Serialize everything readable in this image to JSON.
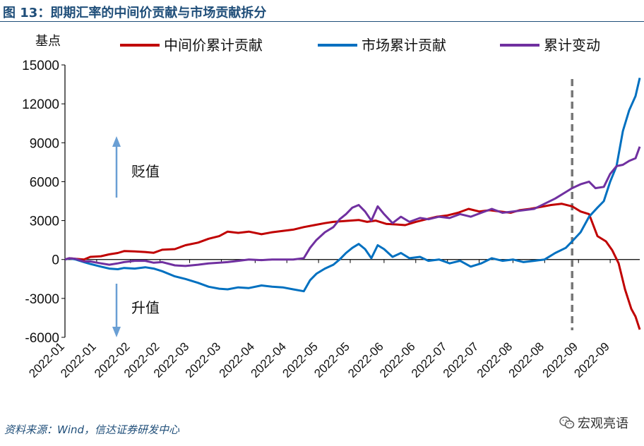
{
  "header": {
    "title": "图 13：即期汇率的中间价贡献与市场贡献拆分"
  },
  "footer": {
    "source": "资料来源：Wind，信达证券研发中心",
    "watermark": "宏观亮语"
  },
  "icons": {
    "watermark_icon": "wechat-logo-icon",
    "up_arrow": "arrow-up-icon",
    "down_arrow": "arrow-down-icon"
  },
  "chart_data": {
    "type": "line",
    "y_unit_label": "基点",
    "ylim": [
      -6000,
      15000
    ],
    "yticks": [
      -6000,
      -3000,
      0,
      3000,
      6000,
      9000,
      12000,
      15000
    ],
    "ytick_labels": [
      "-6000",
      "-3000",
      "0",
      "3000",
      "6000",
      "9000",
      "12000",
      "15000"
    ],
    "x_tick_labels": [
      "2022-01",
      "2022-01",
      "2022-02",
      "2022-02",
      "2022-03",
      "2022-03",
      "2022-04",
      "2022-04",
      "2022-05",
      "2022-05",
      "2022-06",
      "2022-06",
      "2022-07",
      "2022-07",
      "2022-08",
      "2022-08",
      "2022-09",
      "2022-09"
    ],
    "x_tick_dates": [
      "2022-01-01",
      "2022-01-16",
      "2022-02-01",
      "2022-02-15",
      "2022-03-01",
      "2022-03-16",
      "2022-04-01",
      "2022-04-16",
      "2022-05-01",
      "2022-05-16",
      "2022-06-01",
      "2022-06-16",
      "2022-07-01",
      "2022-07-16",
      "2022-08-01",
      "2022-08-16",
      "2022-09-01",
      "2022-09-16"
    ],
    "x_range": [
      "2022-01-01",
      "2022-09-30"
    ],
    "grid": false,
    "legend_position": "top",
    "annotations": {
      "up_label": "贬值",
      "down_label": "升值",
      "vline_date": "2022-08-29"
    },
    "series": [
      {
        "name": "中间价累计贡献",
        "color": "#c00000",
        "points": [
          [
            "2022-01-01",
            0
          ],
          [
            "2022-01-03",
            100
          ],
          [
            "2022-01-06",
            50
          ],
          [
            "2022-01-10",
            0
          ],
          [
            "2022-01-13",
            200
          ],
          [
            "2022-01-18",
            250
          ],
          [
            "2022-01-22",
            400
          ],
          [
            "2022-01-26",
            500
          ],
          [
            "2022-01-29",
            650
          ],
          [
            "2022-02-03",
            620
          ],
          [
            "2022-02-08",
            580
          ],
          [
            "2022-02-12",
            520
          ],
          [
            "2022-02-16",
            750
          ],
          [
            "2022-02-22",
            800
          ],
          [
            "2022-02-27",
            1100
          ],
          [
            "2022-03-05",
            1300
          ],
          [
            "2022-03-10",
            1600
          ],
          [
            "2022-03-15",
            1800
          ],
          [
            "2022-03-19",
            2150
          ],
          [
            "2022-03-24",
            2050
          ],
          [
            "2022-03-29",
            2150
          ],
          [
            "2022-04-04",
            1950
          ],
          [
            "2022-04-09",
            2100
          ],
          [
            "2022-04-14",
            2200
          ],
          [
            "2022-04-19",
            2300
          ],
          [
            "2022-04-24",
            2500
          ],
          [
            "2022-04-29",
            2650
          ],
          [
            "2022-05-04",
            2800
          ],
          [
            "2022-05-08",
            2900
          ],
          [
            "2022-05-12",
            2950
          ],
          [
            "2022-05-16",
            3000
          ],
          [
            "2022-05-20",
            3050
          ],
          [
            "2022-05-24",
            2900
          ],
          [
            "2022-05-28",
            3000
          ],
          [
            "2022-06-02",
            2750
          ],
          [
            "2022-06-07",
            2700
          ],
          [
            "2022-06-11",
            2650
          ],
          [
            "2022-06-16",
            2900
          ],
          [
            "2022-06-21",
            3100
          ],
          [
            "2022-06-26",
            3300
          ],
          [
            "2022-07-01",
            3400
          ],
          [
            "2022-07-06",
            3600
          ],
          [
            "2022-07-11",
            3900
          ],
          [
            "2022-07-16",
            3700
          ],
          [
            "2022-07-21",
            3800
          ],
          [
            "2022-07-26",
            3700
          ],
          [
            "2022-07-31",
            3600
          ],
          [
            "2022-08-04",
            3800
          ],
          [
            "2022-08-09",
            3900
          ],
          [
            "2022-08-14",
            4050
          ],
          [
            "2022-08-19",
            4200
          ],
          [
            "2022-08-24",
            4300
          ],
          [
            "2022-08-29",
            4100
          ],
          [
            "2022-09-02",
            3700
          ],
          [
            "2022-09-06",
            3500
          ],
          [
            "2022-09-10",
            1800
          ],
          [
            "2022-09-14",
            1400
          ],
          [
            "2022-09-17",
            700
          ],
          [
            "2022-09-20",
            -300
          ],
          [
            "2022-09-23",
            -2300
          ],
          [
            "2022-09-26",
            -3800
          ],
          [
            "2022-09-28",
            -4400
          ],
          [
            "2022-09-30",
            -5400
          ]
        ]
      },
      {
        "name": "市场累计贡献",
        "color": "#0070c0",
        "points": [
          [
            "2022-01-01",
            0
          ],
          [
            "2022-01-03",
            80
          ],
          [
            "2022-01-06",
            0
          ],
          [
            "2022-01-10",
            -200
          ],
          [
            "2022-01-13",
            -350
          ],
          [
            "2022-01-18",
            -550
          ],
          [
            "2022-01-22",
            -700
          ],
          [
            "2022-01-26",
            -750
          ],
          [
            "2022-01-29",
            -650
          ],
          [
            "2022-02-03",
            -700
          ],
          [
            "2022-02-08",
            -600
          ],
          [
            "2022-02-12",
            -700
          ],
          [
            "2022-02-16",
            -900
          ],
          [
            "2022-02-22",
            -1300
          ],
          [
            "2022-02-27",
            -1500
          ],
          [
            "2022-03-05",
            -1800
          ],
          [
            "2022-03-10",
            -2100
          ],
          [
            "2022-03-15",
            -2250
          ],
          [
            "2022-03-19",
            -2300
          ],
          [
            "2022-03-24",
            -2150
          ],
          [
            "2022-03-29",
            -2200
          ],
          [
            "2022-04-04",
            -2000
          ],
          [
            "2022-04-09",
            -2100
          ],
          [
            "2022-04-14",
            -2150
          ],
          [
            "2022-04-19",
            -2300
          ],
          [
            "2022-04-24",
            -2450
          ],
          [
            "2022-04-27",
            -1600
          ],
          [
            "2022-04-30",
            -1100
          ],
          [
            "2022-05-04",
            -700
          ],
          [
            "2022-05-08",
            -400
          ],
          [
            "2022-05-11",
            0
          ],
          [
            "2022-05-14",
            500
          ],
          [
            "2022-05-17",
            900
          ],
          [
            "2022-05-20",
            1200
          ],
          [
            "2022-05-23",
            800
          ],
          [
            "2022-05-26",
            100
          ],
          [
            "2022-05-29",
            1100
          ],
          [
            "2022-06-01",
            800
          ],
          [
            "2022-06-05",
            200
          ],
          [
            "2022-06-09",
            500
          ],
          [
            "2022-06-13",
            100
          ],
          [
            "2022-06-18",
            200
          ],
          [
            "2022-06-22",
            -100
          ],
          [
            "2022-06-27",
            0
          ],
          [
            "2022-07-02",
            -300
          ],
          [
            "2022-07-07",
            -100
          ],
          [
            "2022-07-12",
            -550
          ],
          [
            "2022-07-17",
            -300
          ],
          [
            "2022-07-22",
            100
          ],
          [
            "2022-07-27",
            -100
          ],
          [
            "2022-08-01",
            0
          ],
          [
            "2022-08-06",
            -200
          ],
          [
            "2022-08-11",
            -100
          ],
          [
            "2022-08-16",
            0
          ],
          [
            "2022-08-21",
            500
          ],
          [
            "2022-08-26",
            900
          ],
          [
            "2022-08-29",
            1400
          ],
          [
            "2022-09-02",
            2100
          ],
          [
            "2022-09-06",
            3300
          ],
          [
            "2022-09-10",
            4000
          ],
          [
            "2022-09-13",
            4500
          ],
          [
            "2022-09-16",
            6000
          ],
          [
            "2022-09-19",
            7200
          ],
          [
            "2022-09-22",
            9900
          ],
          [
            "2022-09-25",
            11500
          ],
          [
            "2022-09-28",
            12600
          ],
          [
            "2022-09-30",
            14000
          ]
        ]
      },
      {
        "name": "累计变动",
        "color": "#7030a0",
        "points": [
          [
            "2022-01-01",
            0
          ],
          [
            "2022-01-03",
            100
          ],
          [
            "2022-01-06",
            50
          ],
          [
            "2022-01-10",
            -150
          ],
          [
            "2022-01-13",
            -150
          ],
          [
            "2022-01-18",
            -300
          ],
          [
            "2022-01-22",
            -400
          ],
          [
            "2022-01-26",
            -300
          ],
          [
            "2022-01-29",
            -200
          ],
          [
            "2022-02-03",
            -100
          ],
          [
            "2022-02-08",
            -100
          ],
          [
            "2022-02-12",
            -250
          ],
          [
            "2022-02-16",
            -200
          ],
          [
            "2022-02-22",
            -450
          ],
          [
            "2022-02-27",
            -500
          ],
          [
            "2022-03-05",
            -400
          ],
          [
            "2022-03-10",
            -300
          ],
          [
            "2022-03-15",
            -250
          ],
          [
            "2022-03-19",
            -200
          ],
          [
            "2022-03-24",
            -100
          ],
          [
            "2022-03-29",
            0
          ],
          [
            "2022-04-04",
            -50
          ],
          [
            "2022-04-09",
            0
          ],
          [
            "2022-04-14",
            0
          ],
          [
            "2022-04-19",
            0
          ],
          [
            "2022-04-24",
            100
          ],
          [
            "2022-04-27",
            900
          ],
          [
            "2022-04-30",
            1500
          ],
          [
            "2022-05-04",
            2100
          ],
          [
            "2022-05-08",
            2500
          ],
          [
            "2022-05-11",
            3100
          ],
          [
            "2022-05-14",
            3500
          ],
          [
            "2022-05-17",
            4000
          ],
          [
            "2022-05-20",
            4200
          ],
          [
            "2022-05-23",
            3700
          ],
          [
            "2022-05-26",
            3000
          ],
          [
            "2022-05-29",
            4100
          ],
          [
            "2022-06-01",
            3500
          ],
          [
            "2022-06-05",
            2800
          ],
          [
            "2022-06-09",
            3300
          ],
          [
            "2022-06-13",
            2900
          ],
          [
            "2022-06-18",
            3200
          ],
          [
            "2022-06-22",
            3100
          ],
          [
            "2022-06-27",
            3300
          ],
          [
            "2022-07-02",
            3200
          ],
          [
            "2022-07-07",
            3500
          ],
          [
            "2022-07-12",
            3300
          ],
          [
            "2022-07-17",
            3600
          ],
          [
            "2022-07-22",
            3900
          ],
          [
            "2022-07-27",
            3600
          ],
          [
            "2022-08-01",
            3700
          ],
          [
            "2022-08-06",
            3800
          ],
          [
            "2022-08-11",
            3900
          ],
          [
            "2022-08-16",
            4300
          ],
          [
            "2022-08-21",
            4700
          ],
          [
            "2022-08-26",
            5200
          ],
          [
            "2022-08-29",
            5500
          ],
          [
            "2022-09-02",
            5800
          ],
          [
            "2022-09-06",
            6000
          ],
          [
            "2022-09-09",
            5500
          ],
          [
            "2022-09-13",
            5600
          ],
          [
            "2022-09-16",
            6600
          ],
          [
            "2022-09-19",
            7200
          ],
          [
            "2022-09-22",
            7300
          ],
          [
            "2022-09-25",
            7600
          ],
          [
            "2022-09-28",
            7800
          ],
          [
            "2022-09-30",
            8700
          ]
        ]
      }
    ]
  }
}
